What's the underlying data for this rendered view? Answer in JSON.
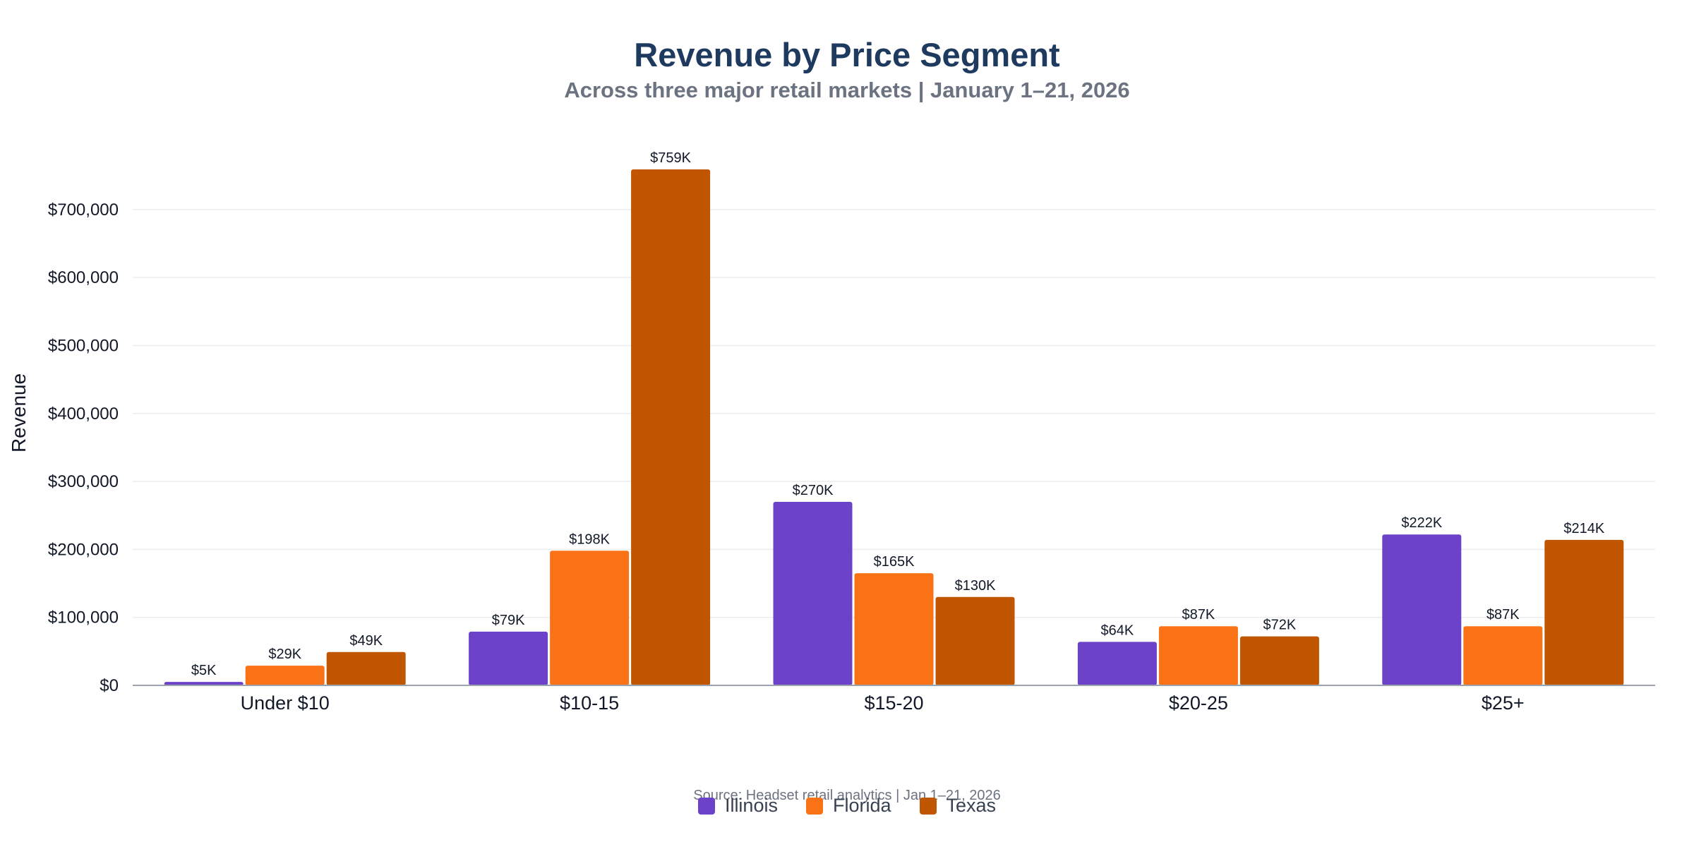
{
  "chart_data": {
    "type": "bar",
    "title": "Revenue by Price Segment",
    "subtitle": "Across three major retail markets | January 1–21, 2026",
    "source": "Source: Headset retail analytics | Jan 1–21, 2026",
    "ylabel": "Revenue",
    "xlabel": "",
    "ylim": [
      0,
      759000
    ],
    "yticks": [
      0,
      100000,
      200000,
      300000,
      400000,
      500000,
      600000,
      700000
    ],
    "ytick_labels": [
      "$0",
      "$100,000",
      "$200,000",
      "$300,000",
      "$400,000",
      "$500,000",
      "$600,000",
      "$700,000"
    ],
    "grid": true,
    "legend_position": "bottom-center",
    "categories": [
      "Under $10",
      "$10-15",
      "$15-20",
      "$20-25",
      "$25+"
    ],
    "series": [
      {
        "name": "Illinois",
        "color": "#6b42c8",
        "values": [
          5000,
          79000,
          270000,
          64000,
          222000
        ],
        "labels": [
          "$5K",
          "$79K",
          "$270K",
          "$64K",
          "$222K"
        ]
      },
      {
        "name": "Florida",
        "color": "#f97316",
        "values": [
          29000,
          198000,
          165000,
          87000,
          87000
        ],
        "labels": [
          "$29K",
          "$198K",
          "$165K",
          "$87K",
          "$87K"
        ]
      },
      {
        "name": "Texas",
        "color": "#c05600",
        "values": [
          49000,
          759000,
          130000,
          72000,
          214000
        ],
        "labels": [
          "$49K",
          "$759K",
          "$130K",
          "$72K",
          "$214K"
        ]
      }
    ]
  }
}
